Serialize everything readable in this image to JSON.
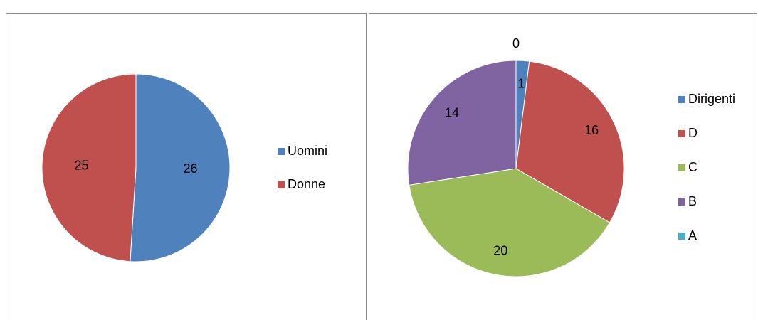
{
  "chart_data": [
    {
      "type": "pie",
      "categories": [
        "Uomini",
        "Donne"
      ],
      "values": [
        26,
        25
      ],
      "colors": [
        "#4f81bd",
        "#c0504d"
      ],
      "legend": "right"
    },
    {
      "type": "pie",
      "categories": [
        "Dirigenti",
        "D",
        "C",
        "B",
        "A"
      ],
      "values": [
        1,
        16,
        20,
        14,
        0
      ],
      "colors": [
        "#4f81bd",
        "#c0504d",
        "#9bbb59",
        "#8064a2",
        "#4bacc6"
      ],
      "legend": "right"
    }
  ]
}
